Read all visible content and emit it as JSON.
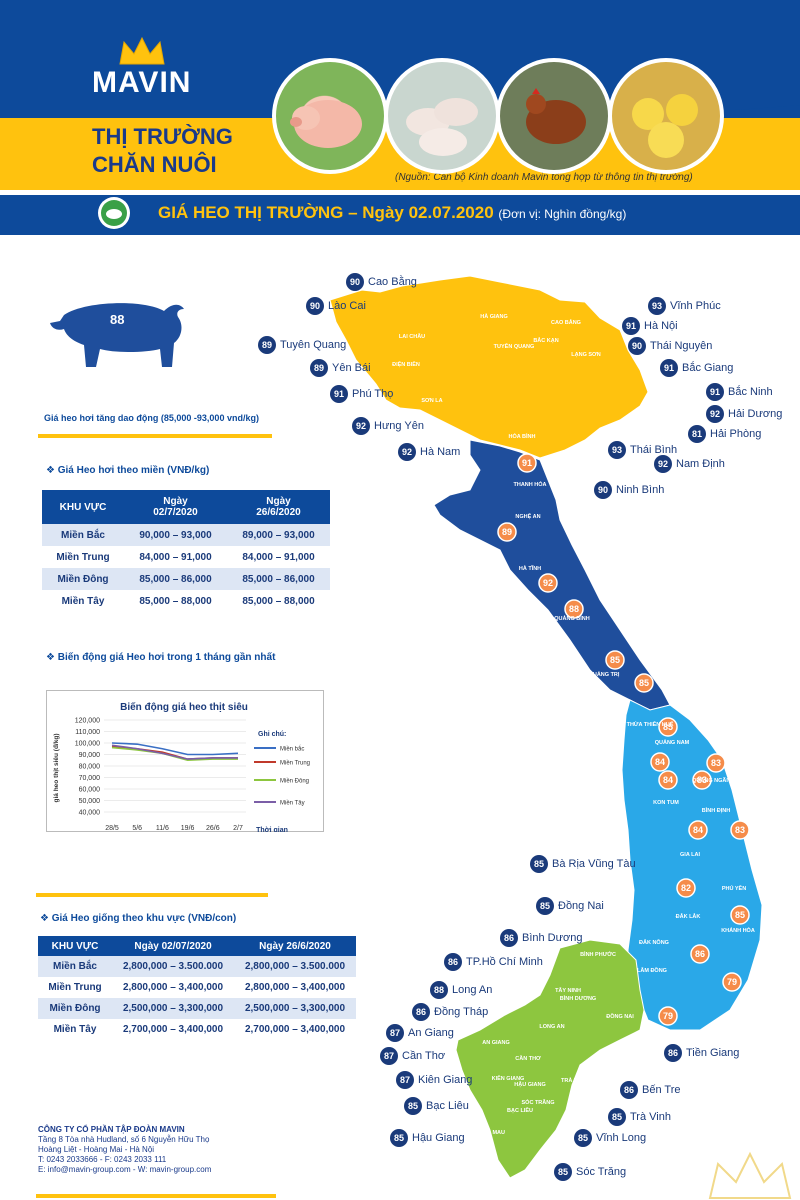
{
  "brand": {
    "logo": "MAVIN"
  },
  "header": {
    "title_line1": "THỊ TRƯỜNG",
    "title_line2": "CHĂN NUÔI",
    "source": "(Nguồn: Cán bộ Kinh doanh Mavin tổng hợp từ thông tin thị trường)"
  },
  "banner": {
    "title": "GIÁ HEO THỊ TRƯỜNG – Ngày 02.07.2020",
    "unit": "(Đơn vị: Nghìn đồng/kg)"
  },
  "pig": {
    "price": "88",
    "note": "Giá heo hơi tăng dao động (85,000 -93,000 vnd/kg)"
  },
  "table1": {
    "title": "Giá Heo hơi theo miền (VNĐ/kg)",
    "headers": [
      "KHU VỰC",
      "Ngày\n02/7/2020",
      "Ngày\n26/6/2020"
    ],
    "rows": [
      [
        "Miền Bắc",
        "90,000 – 93,000",
        "89,000 – 93,000"
      ],
      [
        "Miền Trung",
        "84,000 – 91,000",
        "84,000 – 91,000"
      ],
      [
        "Miền Đông",
        "85,000 – 86,000",
        "85,000 – 86,000"
      ],
      [
        "Miền Tây",
        "85,000 – 88,000",
        "85,000 – 88,000"
      ]
    ]
  },
  "chart_section_title": "Biến động giá Heo hơi trong 1 tháng gần nhất",
  "table2": {
    "title": "Giá Heo giống theo khu vực (VNĐ/con)",
    "headers": [
      "KHU VỰC",
      "Ngày 02/07/2020",
      "Ngày 26/6/2020"
    ],
    "rows": [
      [
        "Miền Bắc",
        "2,800,000 – 3.500.000",
        "2,800,000 – 3.500.000"
      ],
      [
        "Miền Trung",
        "2,800,000 – 3,400,000",
        "2,800,000 – 3,400,000"
      ],
      [
        "Miền Đông",
        "2,500,000 – 3,300,000",
        "2,500,000 – 3,300,000"
      ],
      [
        "Miền Tây",
        "2,700,000 – 3,400,000",
        "2,700,000 – 3,400,000"
      ]
    ]
  },
  "chart_data": {
    "type": "line",
    "title": "Biến động giá heo thịt siêu",
    "ylabel": "giá heo thịt siêu (đ/kg)",
    "xlabel": "Thời gian",
    "legend_title": "Ghi chú:",
    "legend": "right",
    "x": [
      "28/5",
      "5/6",
      "11/6",
      "19/6",
      "26/6",
      "2/7"
    ],
    "ylim": [
      40000,
      120000
    ],
    "yticks": [
      "40,000",
      "50,000",
      "60,000",
      "70,000",
      "80,000",
      "90,000",
      "100,000",
      "110,000",
      "120,000"
    ],
    "series": [
      {
        "name": "Miền bắc",
        "color": "#3a6fc4",
        "values": [
          100000,
          99000,
          95000,
          90000,
          90000,
          91000
        ]
      },
      {
        "name": "Miền Trung",
        "color": "#c0392b",
        "values": [
          97000,
          95000,
          92000,
          86000,
          87000,
          87000
        ]
      },
      {
        "name": "Miền Đông",
        "color": "#8dc63f",
        "values": [
          96000,
          94000,
          91000,
          85000,
          86000,
          86000
        ]
      },
      {
        "name": "Miền Tây",
        "color": "#7b5ea7",
        "values": [
          98000,
          95000,
          91000,
          86000,
          87000,
          87000
        ]
      }
    ]
  },
  "map": {
    "colors": {
      "north": "#ffc20e",
      "central_dark": "#1f4e9c",
      "central_light": "#2aa8e8",
      "south": "#8dc63f",
      "badge": "#1a3a7a",
      "badge_orange": "#f58c4a"
    },
    "north_labels": [
      {
        "price": "90",
        "name": "Cao Bằng"
      },
      {
        "price": "90",
        "name": "Lào Cai"
      },
      {
        "price": "89",
        "name": "Tuyên Quang"
      },
      {
        "price": "89",
        "name": "Yên Bái"
      },
      {
        "price": "91",
        "name": "Phú Thọ"
      },
      {
        "price": "92",
        "name": "Hưng Yên"
      },
      {
        "price": "92",
        "name": "Hà Nam"
      },
      {
        "price": "93",
        "name": "Vĩnh Phúc"
      },
      {
        "price": "91",
        "name": "Hà Nội"
      },
      {
        "price": "90",
        "name": "Thái Nguyên"
      },
      {
        "price": "91",
        "name": "Bắc Giang"
      },
      {
        "price": "91",
        "name": "Bắc Ninh"
      },
      {
        "price": "92",
        "name": "Hải Dương"
      },
      {
        "price": "81",
        "name": "Hải Phòng"
      },
      {
        "price": "93",
        "name": "Thái Bình"
      },
      {
        "price": "92",
        "name": "Nam Định"
      },
      {
        "price": "90",
        "name": "Ninh Bình"
      }
    ],
    "south_labels": [
      {
        "price": "85",
        "name": "Bà Rịa Vũng Tàu"
      },
      {
        "price": "85",
        "name": "Đồng Nai"
      },
      {
        "price": "86",
        "name": "Bình Dương"
      },
      {
        "price": "86",
        "name": "TP.Hồ Chí Minh"
      },
      {
        "price": "88",
        "name": "Long An"
      },
      {
        "price": "86",
        "name": "Đồng Tháp"
      },
      {
        "price": "87",
        "name": "An Giang"
      },
      {
        "price": "87",
        "name": "Cần Thơ"
      },
      {
        "price": "87",
        "name": "Kiên Giang"
      },
      {
        "price": "85",
        "name": "Bạc Liêu"
      },
      {
        "price": "85",
        "name": "Hậu Giang"
      },
      {
        "price": "86",
        "name": "Tiền Giang"
      },
      {
        "price": "86",
        "name": "Bến Tre"
      },
      {
        "price": "85",
        "name": "Trà Vinh"
      },
      {
        "price": "85",
        "name": "Vĩnh Long"
      },
      {
        "price": "85",
        "name": "Sóc Trăng"
      }
    ],
    "central_badges": [
      "91",
      "89",
      "92",
      "88",
      "85",
      "85",
      "85",
      "84",
      "83",
      "83",
      "84",
      "83",
      "84",
      "82",
      "85",
      "86",
      "79",
      "79"
    ],
    "province_names": [
      "LAI CHÂU",
      "ĐIỆN BIÊN",
      "SƠN LA",
      "HÀ GIANG",
      "TUYÊN QUANG",
      "CAO BẰNG",
      "BẮC KẠN",
      "LẠNG SƠN",
      "HÒA BÌNH",
      "THANH HÓA",
      "NGHỆ AN",
      "HÀ TĨNH",
      "QUẢNG BÌNH",
      "QUẢNG TRỊ",
      "THỪA THIÊN HUẾ",
      "QUẢNG NAM",
      "QUẢNG NGÃI",
      "KON TUM",
      "BÌNH ĐỊNH",
      "GIA LAI",
      "PHÚ YÊN",
      "ĐẮK LẮK",
      "KHÁNH HÒA",
      "ĐẮK NÔNG",
      "LÂM ĐỒNG",
      "BÌNH PHƯỚC",
      "TÂY NINH",
      "BÌNH DƯƠNG",
      "ĐỒNG NAI",
      "LONG AN",
      "AN GIANG",
      "KIÊN GIANG",
      "CẦN THƠ",
      "HẬU GIANG",
      "SÓC TRĂNG",
      "BẠC LIÊU",
      "CÀ MAU",
      "TRÀ VINH"
    ]
  },
  "footer": {
    "company": "CÔNG TY CỔ PHẦN TẬP ĐOÀN MAVIN",
    "address1": "Tầng 8 Tòa nhà Hudland, số 6 Nguyễn Hữu Thọ",
    "address2": "Hoàng Liệt - Hoàng Mai - Hà Nội",
    "phone": "T: 0243 2033666 - F: 0243 2033 111",
    "contact": "E: info@mavin-group.com - W: mavin-group.com"
  }
}
